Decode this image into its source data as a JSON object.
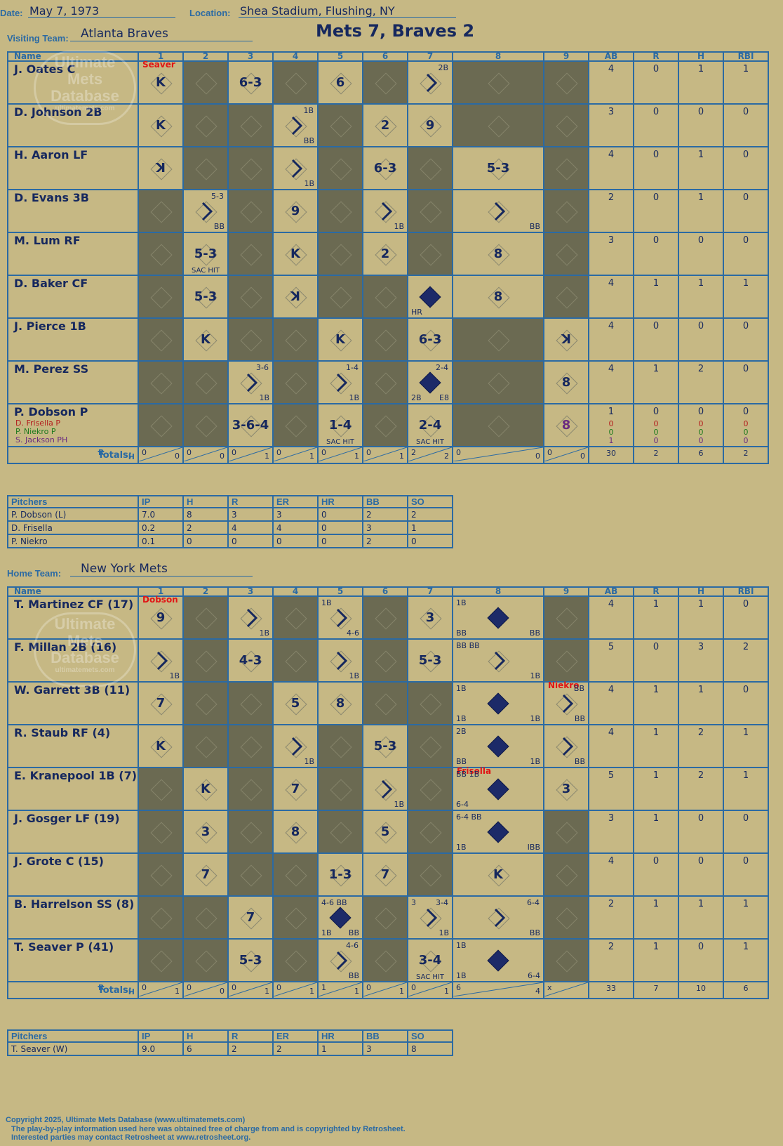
{
  "header": {
    "date_label": "Date:",
    "date": "May 7, 1973",
    "location_label": "Location:",
    "location": "Shea Stadium, Flushing, NY",
    "visiting_label": "Visiting Team:",
    "visiting_team": "Atlanta Braves",
    "home_label": "Home Team:",
    "home_team": "New York Mets",
    "title": "Mets 7, Braves 2"
  },
  "columns": {
    "name": "Name",
    "innings": [
      "1",
      "2",
      "3",
      "4",
      "5",
      "6",
      "7",
      "8",
      "9"
    ],
    "stats": [
      "AB",
      "R",
      "H",
      "RBI"
    ],
    "totals_label": "Totals:",
    "r_label": "R",
    "h_label": "H"
  },
  "visitors": {
    "players": [
      {
        "name": "J. Oates C",
        "stats": [
          "4",
          "0",
          "1",
          "1"
        ],
        "cells": [
          {
            "m": "K",
            "pitcher": "Seaver"
          },
          null,
          {
            "m": "6-3"
          },
          null,
          {
            "m": "6"
          },
          null,
          {
            "hit": 1,
            "tr": "2B"
          },
          null,
          null
        ]
      },
      {
        "name": "D. Johnson 2B",
        "stats": [
          "3",
          "0",
          "0",
          "0"
        ],
        "cells": [
          {
            "m": "K"
          },
          null,
          null,
          {
            "hit": 1,
            "tr": "1B",
            "sr": "BB"
          },
          null,
          {
            "m": "2"
          },
          {
            "m": "9"
          },
          null,
          null
        ]
      },
      {
        "name": "H. Aaron LF",
        "stats": [
          "4",
          "0",
          "1",
          "0"
        ],
        "cells": [
          {
            "m": "ꓘ"
          },
          null,
          null,
          {
            "hit": 1,
            "sr": "1B"
          },
          null,
          {
            "m": "6-3"
          },
          null,
          {
            "m": "5-3"
          },
          null
        ]
      },
      {
        "name": "D. Evans 3B",
        "stats": [
          "2",
          "0",
          "1",
          "0"
        ],
        "cells": [
          null,
          {
            "hit": 1,
            "tr": "5-3",
            "sr": "BB"
          },
          null,
          {
            "m": "9"
          },
          null,
          {
            "hit": 1,
            "sr": "1B"
          },
          null,
          {
            "hit": 1,
            "sr": "BB"
          },
          null
        ]
      },
      {
        "name": "M. Lum RF",
        "stats": [
          "3",
          "0",
          "0",
          "0"
        ],
        "cells": [
          null,
          {
            "m": "5-3",
            "cap": "SAC HIT"
          },
          null,
          {
            "m": "K"
          },
          null,
          {
            "m": "2"
          },
          null,
          {
            "m": "8"
          },
          null
        ]
      },
      {
        "name": "D. Baker CF",
        "stats": [
          "4",
          "1",
          "1",
          "1"
        ],
        "cells": [
          null,
          {
            "m": "5-3"
          },
          null,
          {
            "m": "ꓘ"
          },
          null,
          null,
          {
            "scored": 1,
            "sl": "HR"
          },
          {
            "m": "8"
          },
          null
        ]
      },
      {
        "name": "J. Pierce 1B",
        "stats": [
          "4",
          "0",
          "0",
          "0"
        ],
        "cells": [
          null,
          {
            "m": "K"
          },
          null,
          null,
          {
            "m": "K"
          },
          null,
          {
            "m": "6-3"
          },
          null,
          {
            "m": "ꓘ"
          }
        ]
      },
      {
        "name": "M. Perez SS",
        "stats": [
          "4",
          "1",
          "2",
          "0"
        ],
        "cells": [
          null,
          null,
          {
            "hit": 1,
            "tr": "3-6",
            "sr": "1B"
          },
          null,
          {
            "hit": 1,
            "tr": "1-4",
            "sr": "1B"
          },
          null,
          {
            "scored": 1,
            "tr": "2-4",
            "sl": "2B",
            "sr": "E8"
          },
          null,
          {
            "m": "8"
          }
        ]
      },
      {
        "name": "P. Dobson P",
        "stats": [
          "1",
          "0",
          "0",
          "0"
        ],
        "subs": [
          {
            "name": "D. Frisella P",
            "color": "#b31c1c",
            "stats": [
              "0",
              "0",
              "0",
              "0"
            ]
          },
          {
            "name": "P. Niekro P",
            "color": "#1d7a1d",
            "stats": [
              "0",
              "0",
              "0",
              "0"
            ]
          },
          {
            "name": "S. Jackson PH",
            "color": "#6a2a80",
            "stats": [
              "1",
              "0",
              "0",
              "0"
            ]
          }
        ],
        "cells": [
          null,
          null,
          {
            "m": "3-6-4"
          },
          null,
          {
            "m": "1-4",
            "cap": "SAC HIT"
          },
          null,
          {
            "m": "2-4",
            "cap": "SAC HIT"
          },
          null,
          {
            "m": "8",
            "color": "#6a2a80"
          }
        ]
      }
    ],
    "totals": {
      "innings": [
        [
          "0",
          "0"
        ],
        [
          "0",
          "0"
        ],
        [
          "0",
          "1"
        ],
        [
          "0",
          "1"
        ],
        [
          "0",
          "1"
        ],
        [
          "0",
          "1"
        ],
        [
          "2",
          "2"
        ],
        [
          "0",
          "0"
        ],
        [
          "0",
          "0"
        ]
      ],
      "stats": [
        "30",
        "2",
        "6",
        "2"
      ]
    }
  },
  "visitor_pitching": {
    "headers": [
      "Pitchers",
      "IP",
      "H",
      "R",
      "ER",
      "HR",
      "BB",
      "SO"
    ],
    "rows": [
      [
        "P. Dobson (L)",
        "7.0",
        "8",
        "3",
        "3",
        "0",
        "2",
        "2"
      ],
      [
        "D. Frisella",
        "0.2",
        "2",
        "4",
        "4",
        "0",
        "3",
        "1"
      ],
      [
        "P. Niekro",
        "0.1",
        "0",
        "0",
        "0",
        "0",
        "2",
        "0"
      ]
    ]
  },
  "home": {
    "players": [
      {
        "name": "T. Martinez CF (17)",
        "stats": [
          "4",
          "1",
          "1",
          "0"
        ],
        "cells": [
          {
            "m": "9",
            "pitcher": "Dobson"
          },
          null,
          {
            "hit": 1,
            "sr": "1B"
          },
          null,
          {
            "hit": 1,
            "tl": "1B",
            "sr": "4-6"
          },
          null,
          {
            "m": "3"
          },
          {
            "scored": 1,
            "tl": "1B",
            "sl": "BB",
            "sr": "BB"
          },
          null
        ]
      },
      {
        "name": "F. Millan 2B (16)",
        "stats": [
          "5",
          "0",
          "3",
          "2"
        ],
        "cells": [
          {
            "hit": 1,
            "sr": "1B"
          },
          null,
          {
            "m": "4-3"
          },
          null,
          {
            "hit": 1,
            "sr": "1B"
          },
          null,
          {
            "m": "5-3"
          },
          {
            "hit": 1,
            "tl": "BB BB",
            "sr": "1B"
          },
          null
        ]
      },
      {
        "name": "W. Garrett 3B (11)",
        "stats": [
          "4",
          "1",
          "1",
          "0"
        ],
        "cells": [
          {
            "m": "7"
          },
          null,
          null,
          {
            "m": "5"
          },
          {
            "m": "8"
          },
          null,
          null,
          {
            "scored": 1,
            "tl": "1B",
            "sl": "1B",
            "sr": "1B"
          },
          {
            "hit": 1,
            "pitcher": "Niekro",
            "tr": "BB",
            "sr": "BB"
          }
        ]
      },
      {
        "name": "R. Staub RF (4)",
        "stats": [
          "4",
          "1",
          "2",
          "1"
        ],
        "cells": [
          {
            "m": "K"
          },
          null,
          null,
          {
            "hit": 1,
            "sr": "1B"
          },
          null,
          {
            "m": "5-3"
          },
          null,
          {
            "scored": 1,
            "tl": "2B",
            "sl": "BB",
            "sr": "1B"
          },
          {
            "hit": 1,
            "sr": "BB"
          }
        ]
      },
      {
        "name": "E. Kranepool 1B (7)",
        "stats": [
          "5",
          "1",
          "2",
          "1"
        ],
        "cells": [
          null,
          {
            "m": "K"
          },
          null,
          {
            "m": "7"
          },
          null,
          {
            "hit": 1,
            "sr": "1B"
          },
          null,
          {
            "scored": 1,
            "pitcher": "Frisella",
            "tl": "BB 1B",
            "sl": "6-4"
          },
          {
            "m": "3"
          }
        ]
      },
      {
        "name": "J. Gosger LF (19)",
        "stats": [
          "3",
          "1",
          "0",
          "0"
        ],
        "cells": [
          null,
          {
            "m": "3"
          },
          null,
          {
            "m": "8"
          },
          null,
          {
            "m": "5"
          },
          null,
          {
            "scored": 1,
            "tl": "6-4 BB",
            "sl": "1B",
            "sr": "IBB"
          },
          null
        ]
      },
      {
        "name": "J. Grote C (15)",
        "stats": [
          "4",
          "0",
          "0",
          "0"
        ],
        "cells": [
          null,
          {
            "m": "7"
          },
          null,
          null,
          {
            "m": "1-3"
          },
          {
            "m": "7"
          },
          null,
          {
            "m": "K"
          },
          null
        ]
      },
      {
        "name": "B. Harrelson SS (8)",
        "stats": [
          "2",
          "1",
          "1",
          "1"
        ],
        "cells": [
          null,
          null,
          {
            "m": "7"
          },
          null,
          {
            "scored": 1,
            "tl": "4-6 BB",
            "sl": "1B",
            "sr": "BB"
          },
          null,
          {
            "hit": 1,
            "tl": "3",
            "tr": "3-4",
            "sr": "1B"
          },
          {
            "hit": 1,
            "tr": "6-4",
            "sr": "BB"
          },
          null
        ]
      },
      {
        "name": "T. Seaver P (41)",
        "stats": [
          "2",
          "1",
          "0",
          "1"
        ],
        "cells": [
          null,
          null,
          {
            "m": "5-3"
          },
          null,
          {
            "hit": 1,
            "tr": "4-6",
            "sr": "BB"
          },
          null,
          {
            "m": "3-4",
            "cap": "SAC HIT"
          },
          {
            "scored": 1,
            "tl": "1B",
            "sl": "1B",
            "sr": "6-4"
          },
          null
        ]
      }
    ],
    "totals": {
      "innings": [
        [
          "0",
          "1"
        ],
        [
          "0",
          "0"
        ],
        [
          "0",
          "1"
        ],
        [
          "0",
          "1"
        ],
        [
          "1",
          "1"
        ],
        [
          "0",
          "1"
        ],
        [
          "0",
          "1"
        ],
        [
          "6",
          "4"
        ],
        [
          "x",
          ""
        ]
      ],
      "stats": [
        "33",
        "7",
        "10",
        "6"
      ]
    }
  },
  "home_pitching": {
    "headers": [
      "Pitchers",
      "IP",
      "H",
      "R",
      "ER",
      "HR",
      "BB",
      "SO"
    ],
    "rows": [
      [
        "T. Seaver (W)",
        "9.0",
        "6",
        "2",
        "2",
        "1",
        "3",
        "8"
      ]
    ]
  },
  "watermark": {
    "l1": "Ultimate",
    "l2": "Mets",
    "l3": "Database",
    "l4": "ultimatemets.com"
  },
  "footer": {
    "copyright": "Copyright 2025, Ultimate Mets Database (www.ultimatemets.com)",
    "line2": "The play-by-play information used here was obtained free of charge from and is copyrighted by Retrosheet.",
    "line3": "Interested parties may contact Retrosheet at www.retrosheet.org."
  },
  "colors": {
    "paper": "#c6b884",
    "grid": "#2b6aa3",
    "dark_cell": "#6b6a52",
    "ink": "#16285e",
    "pitcher_note": "#e11515"
  }
}
